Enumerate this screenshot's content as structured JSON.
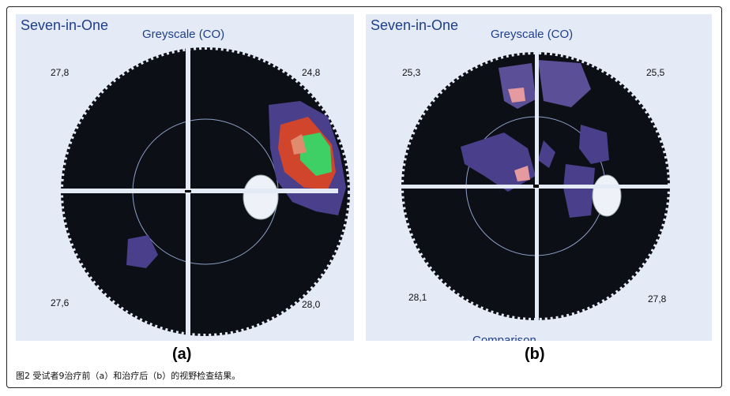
{
  "panels": [
    {
      "id": "a",
      "program": "Seven-in-One",
      "mode": "Greyscale (CO)",
      "quadrants": {
        "top_left": "27,8",
        "top_right": "24,8",
        "bottom_left": "27,6",
        "bottom_right": "28,0"
      },
      "label": "(a)",
      "cut_text": ""
    },
    {
      "id": "b",
      "program": "Seven-in-One",
      "mode": "Greyscale (CO)",
      "quadrants": {
        "top_left": "25,3",
        "top_right": "25,5",
        "bottom_left": "28,1",
        "bottom_right": "27,8"
      },
      "label": "(b)",
      "cut_text": "Comparison"
    }
  ],
  "caption": "图2 受试者9治疗前（a）和治疗后（b）的视野检查结果。",
  "colors": {
    "background": "#e5ebf6",
    "field": "#0d0f17",
    "defect_purple": "#4a3f8a",
    "defect_red": "#d1452d",
    "defect_green": "#3fd065",
    "text_blue": "#1f3e8a"
  }
}
